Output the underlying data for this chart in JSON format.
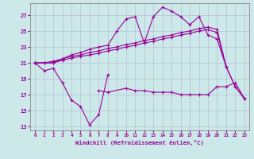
{
  "x": [
    0,
    1,
    2,
    3,
    4,
    5,
    6,
    7,
    8,
    9,
    10,
    11,
    12,
    13,
    14,
    15,
    16,
    17,
    18,
    19,
    20,
    21,
    22,
    23
  ],
  "line_windchill": [
    21.0,
    20.0,
    20.3,
    18.5,
    16.3,
    15.5,
    13.2,
    14.5,
    19.5,
    null,
    null,
    null,
    null,
    null,
    null,
    null,
    null,
    null,
    null,
    null,
    null,
    null,
    null,
    null
  ],
  "line_wc2": [
    null,
    null,
    null,
    null,
    null,
    null,
    null,
    17.5,
    17.3,
    null,
    17.8,
    17.5,
    17.5,
    17.3,
    17.3,
    17.3,
    17.0,
    17.0,
    17.0,
    17.0,
    18.0,
    18.0,
    18.5,
    16.5
  ],
  "line_low": [
    21.0,
    21.0,
    21.0,
    21.3,
    21.6,
    21.8,
    22.0,
    22.2,
    22.5,
    22.7,
    23.0,
    23.2,
    23.5,
    23.7,
    24.0,
    24.2,
    24.5,
    24.7,
    25.0,
    25.2,
    24.8,
    20.5,
    null,
    null
  ],
  "line_mid": [
    21.0,
    21.0,
    21.2,
    21.5,
    21.8,
    22.0,
    22.3,
    22.5,
    22.8,
    23.0,
    23.3,
    23.5,
    23.8,
    24.0,
    24.3,
    24.5,
    24.8,
    25.0,
    25.3,
    25.5,
    25.2,
    20.5,
    18.0,
    16.5
  ],
  "line_high": [
    21.0,
    21.0,
    21.0,
    21.5,
    22.0,
    22.3,
    22.7,
    23.0,
    23.2,
    25.0,
    26.5,
    26.8,
    23.5,
    26.8,
    28.0,
    27.5,
    26.8,
    25.8,
    26.8,
    24.5,
    24.0,
    20.5,
    18.0,
    16.5
  ],
  "bg_color": "#cce8e8",
  "line_color": "#990099",
  "xlabel": "Windchill (Refroidissement éolien,°C)",
  "ylabel_ticks": [
    13,
    15,
    17,
    19,
    21,
    23,
    25,
    27
  ],
  "ylim": [
    12.5,
    28.5
  ],
  "xlim": [
    -0.5,
    23.5
  ],
  "grid_color": "#aaaacc",
  "tick_color": "#990099"
}
